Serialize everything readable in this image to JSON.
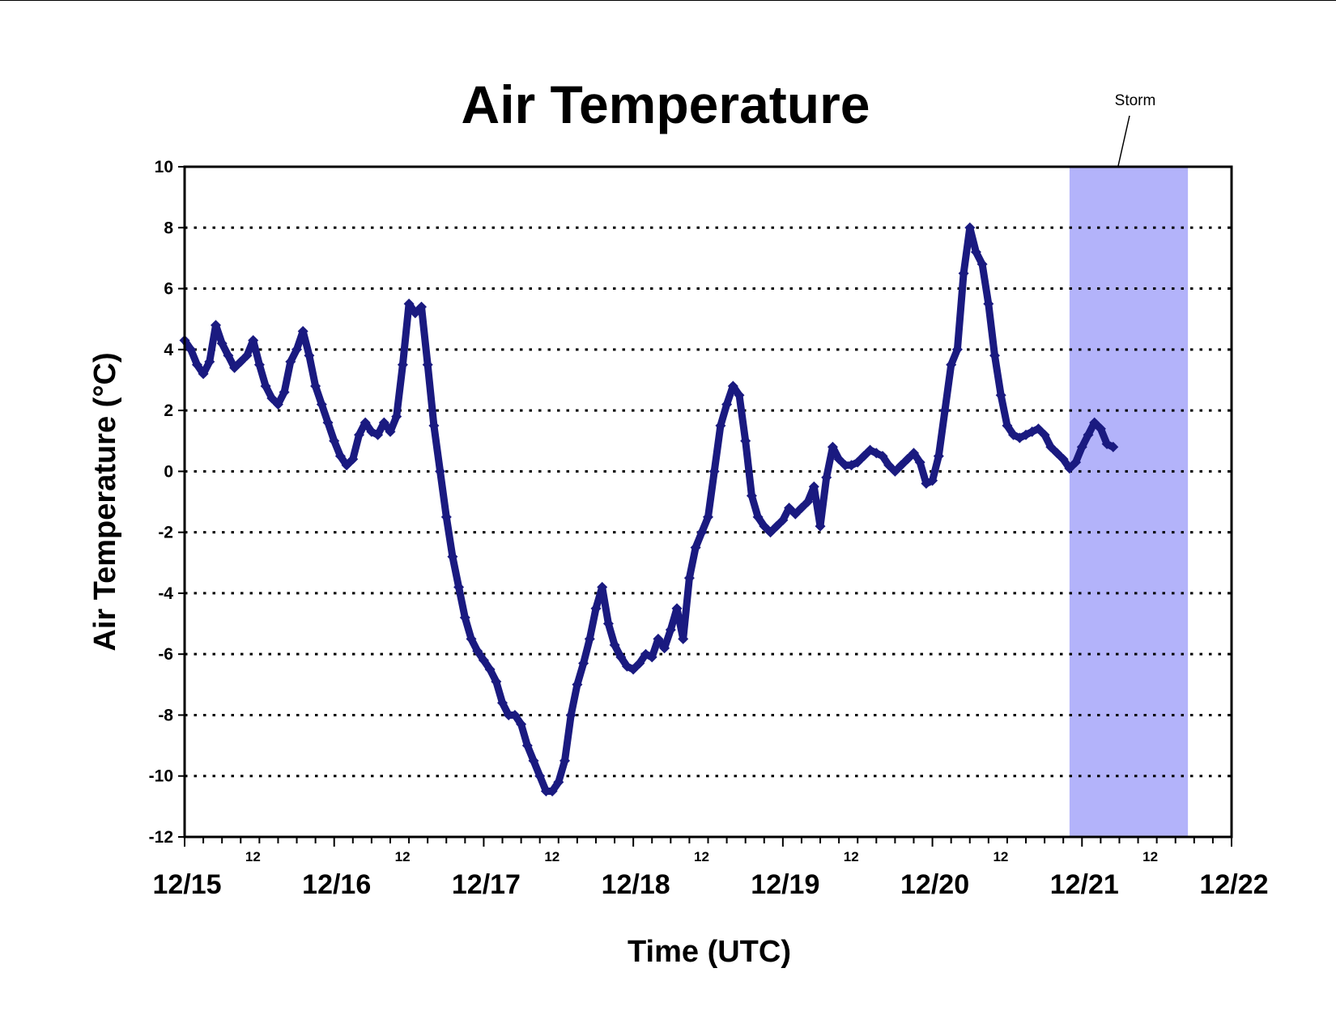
{
  "chart_data": {
    "type": "scatter",
    "title": "Air Temperature",
    "xlabel": "Time (UTC)",
    "ylabel": "Air Temperature (°C)",
    "ylim": [
      -12,
      10
    ],
    "yticks": [
      10,
      8,
      6,
      4,
      2,
      0,
      -2,
      -4,
      -6,
      -8,
      -10,
      -12
    ],
    "ytick_labels": [
      "10",
      "8",
      "6",
      "4",
      "2",
      "0",
      "-2",
      "-4",
      "-6",
      "-8",
      "-10",
      "-12"
    ],
    "xlim": [
      "12/15 00:00",
      "12/22 00:00"
    ],
    "date_labels": [
      "12/15",
      "12/16",
      "12/17",
      "12/18",
      "12/19",
      "12/20",
      "12/21",
      "12/22"
    ],
    "midday_label": "12",
    "grid": "horizontal dotted",
    "annotation": {
      "label": "Storm",
      "start": "12/20 22:00",
      "end": "12/21 17:00",
      "color": "#b3b3fa"
    },
    "series": [
      {
        "color": "#1a1a80",
        "marker": "diamond",
        "points": [
          [
            "12/15 00:00",
            4.3
          ],
          [
            "12/15 01:00",
            4.0
          ],
          [
            "12/15 02:00",
            3.5
          ],
          [
            "12/15 03:00",
            3.2
          ],
          [
            "12/15 04:00",
            3.6
          ],
          [
            "12/15 05:00",
            4.8
          ],
          [
            "12/15 06:00",
            4.2
          ],
          [
            "12/15 07:00",
            3.8
          ],
          [
            "12/15 08:00",
            3.4
          ],
          [
            "12/15 09:00",
            3.6
          ],
          [
            "12/15 10:00",
            3.8
          ],
          [
            "12/15 11:00",
            4.3
          ],
          [
            "12/15 12:00",
            3.5
          ],
          [
            "12/15 13:00",
            2.8
          ],
          [
            "12/15 14:00",
            2.4
          ],
          [
            "12/15 15:00",
            2.2
          ],
          [
            "12/15 16:00",
            2.6
          ],
          [
            "12/15 17:00",
            3.6
          ],
          [
            "12/15 18:00",
            4.0
          ],
          [
            "12/15 19:00",
            4.6
          ],
          [
            "12/15 20:00",
            3.8
          ],
          [
            "12/15 21:00",
            2.8
          ],
          [
            "12/15 22:00",
            2.2
          ],
          [
            "12/15 23:00",
            1.6
          ],
          [
            "12/16 00:00",
            1.0
          ],
          [
            "12/16 01:00",
            0.5
          ],
          [
            "12/16 02:00",
            0.2
          ],
          [
            "12/16 03:00",
            0.4
          ],
          [
            "12/16 04:00",
            1.2
          ],
          [
            "12/16 05:00",
            1.6
          ],
          [
            "12/16 06:00",
            1.3
          ],
          [
            "12/16 07:00",
            1.2
          ],
          [
            "12/16 08:00",
            1.6
          ],
          [
            "12/16 09:00",
            1.3
          ],
          [
            "12/16 10:00",
            1.8
          ],
          [
            "12/16 11:00",
            3.5
          ],
          [
            "12/16 12:00",
            5.5
          ],
          [
            "12/16 13:00",
            5.2
          ],
          [
            "12/16 14:00",
            5.4
          ],
          [
            "12/16 15:00",
            3.5
          ],
          [
            "12/16 16:00",
            1.5
          ],
          [
            "12/16 17:00",
            0.0
          ],
          [
            "12/16 18:00",
            -1.5
          ],
          [
            "12/16 19:00",
            -2.8
          ],
          [
            "12/16 20:00",
            -3.8
          ],
          [
            "12/16 21:00",
            -4.8
          ],
          [
            "12/16 22:00",
            -5.5
          ],
          [
            "12/16 23:00",
            -5.9
          ],
          [
            "12/17 00:00",
            -6.2
          ],
          [
            "12/17 01:00",
            -6.5
          ],
          [
            "12/17 02:00",
            -6.9
          ],
          [
            "12/17 03:00",
            -7.6
          ],
          [
            "12/17 04:00",
            -8.0
          ],
          [
            "12/17 05:00",
            -8.0
          ],
          [
            "12/17 06:00",
            -8.3
          ],
          [
            "12/17 07:00",
            -9.0
          ],
          [
            "12/17 08:00",
            -9.5
          ],
          [
            "12/17 09:00",
            -10.0
          ],
          [
            "12/17 10:00",
            -10.5
          ],
          [
            "12/17 11:00",
            -10.5
          ],
          [
            "12/17 12:00",
            -10.2
          ],
          [
            "12/17 13:00",
            -9.5
          ],
          [
            "12/17 14:00",
            -8.0
          ],
          [
            "12/17 15:00",
            -7.0
          ],
          [
            "12/17 16:00",
            -6.3
          ],
          [
            "12/17 17:00",
            -5.5
          ],
          [
            "12/17 18:00",
            -4.5
          ],
          [
            "12/17 19:00",
            -3.8
          ],
          [
            "12/17 20:00",
            -5.0
          ],
          [
            "12/17 21:00",
            -5.7
          ],
          [
            "12/17 22:00",
            -6.1
          ],
          [
            "12/17 23:00",
            -6.4
          ],
          [
            "12/18 00:00",
            -6.5
          ],
          [
            "12/18 01:00",
            -6.3
          ],
          [
            "12/18 02:00",
            -6.0
          ],
          [
            "12/18 03:00",
            -6.1
          ],
          [
            "12/18 04:00",
            -5.5
          ],
          [
            "12/18 05:00",
            -5.8
          ],
          [
            "12/18 06:00",
            -5.2
          ],
          [
            "12/18 07:00",
            -4.5
          ],
          [
            "12/18 08:00",
            -5.5
          ],
          [
            "12/18 09:00",
            -3.5
          ],
          [
            "12/18 10:00",
            -2.5
          ],
          [
            "12/18 11:00",
            -2.0
          ],
          [
            "12/18 12:00",
            -1.5
          ],
          [
            "12/18 13:00",
            0.0
          ],
          [
            "12/18 14:00",
            1.5
          ],
          [
            "12/18 15:00",
            2.2
          ],
          [
            "12/18 16:00",
            2.8
          ],
          [
            "12/18 17:00",
            2.5
          ],
          [
            "12/18 18:00",
            1.0
          ],
          [
            "12/18 19:00",
            -0.8
          ],
          [
            "12/18 20:00",
            -1.5
          ],
          [
            "12/18 21:00",
            -1.8
          ],
          [
            "12/18 22:00",
            -2.0
          ],
          [
            "12/18 23:00",
            -1.8
          ],
          [
            "12/19 00:00",
            -1.6
          ],
          [
            "12/19 01:00",
            -1.2
          ],
          [
            "12/19 02:00",
            -1.4
          ],
          [
            "12/19 03:00",
            -1.2
          ],
          [
            "12/19 04:00",
            -1.0
          ],
          [
            "12/19 05:00",
            -0.5
          ],
          [
            "12/19 06:00",
            -1.8
          ],
          [
            "12/19 07:00",
            -0.2
          ],
          [
            "12/19 08:00",
            0.8
          ],
          [
            "12/19 09:00",
            0.4
          ],
          [
            "12/19 10:00",
            0.2
          ],
          [
            "12/19 11:00",
            0.2
          ],
          [
            "12/19 12:00",
            0.3
          ],
          [
            "12/19 13:00",
            0.5
          ],
          [
            "12/19 14:00",
            0.7
          ],
          [
            "12/19 15:00",
            0.6
          ],
          [
            "12/19 16:00",
            0.5
          ],
          [
            "12/19 17:00",
            0.2
          ],
          [
            "12/19 18:00",
            0.0
          ],
          [
            "12/19 19:00",
            0.2
          ],
          [
            "12/19 20:00",
            0.4
          ],
          [
            "12/19 21:00",
            0.6
          ],
          [
            "12/19 22:00",
            0.3
          ],
          [
            "12/19 23:00",
            -0.4
          ],
          [
            "12/20 00:00",
            -0.3
          ],
          [
            "12/20 01:00",
            0.5
          ],
          [
            "12/20 02:00",
            2.0
          ],
          [
            "12/20 03:00",
            3.5
          ],
          [
            "12/20 04:00",
            4.0
          ],
          [
            "12/20 05:00",
            6.5
          ],
          [
            "12/20 06:00",
            8.0
          ],
          [
            "12/20 07:00",
            7.2
          ],
          [
            "12/20 08:00",
            6.8
          ],
          [
            "12/20 09:00",
            5.5
          ],
          [
            "12/20 10:00",
            3.8
          ],
          [
            "12/20 11:00",
            2.5
          ],
          [
            "12/20 12:00",
            1.5
          ],
          [
            "12/20 13:00",
            1.2
          ],
          [
            "12/20 14:00",
            1.1
          ],
          [
            "12/20 15:00",
            1.2
          ],
          [
            "12/20 16:00",
            1.3
          ],
          [
            "12/20 17:00",
            1.4
          ],
          [
            "12/20 18:00",
            1.2
          ],
          [
            "12/20 19:00",
            0.8
          ],
          [
            "12/20 20:00",
            0.6
          ],
          [
            "12/20 21:00",
            0.4
          ],
          [
            "12/20 22:00",
            0.1
          ],
          [
            "12/20 23:00",
            0.3
          ],
          [
            "12/21 00:00",
            0.8
          ],
          [
            "12/21 01:00",
            1.2
          ],
          [
            "12/21 02:00",
            1.6
          ],
          [
            "12/21 03:00",
            1.4
          ],
          [
            "12/21 04:00",
            0.9
          ],
          [
            "12/21 05:00",
            0.8
          ]
        ]
      }
    ]
  }
}
